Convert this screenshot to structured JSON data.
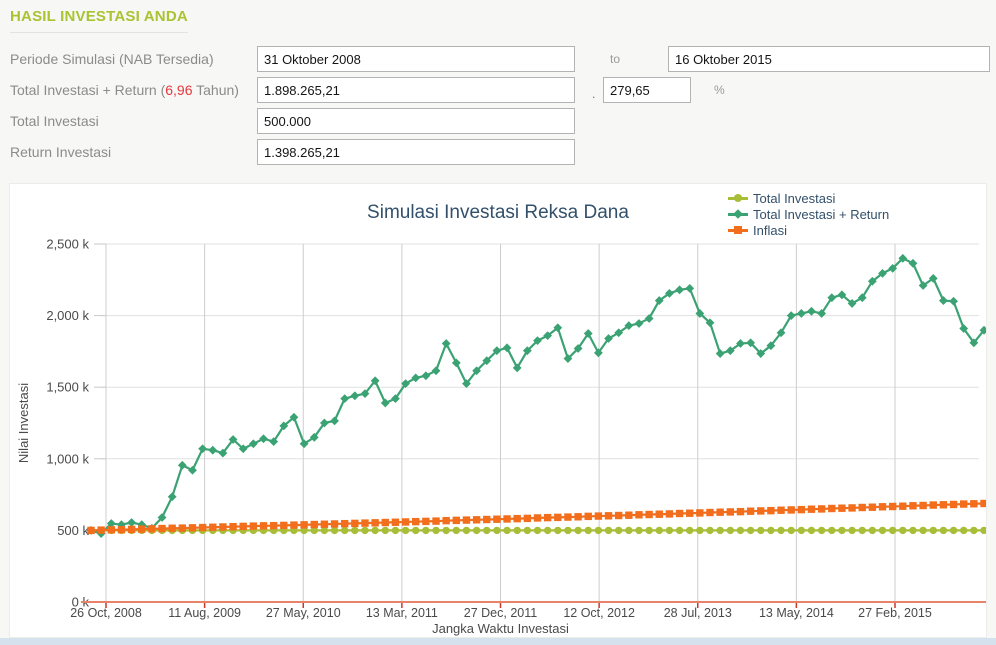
{
  "header": {
    "title": "HASIL INVESTASI ANDA"
  },
  "form": {
    "periode": {
      "label": "Periode Simulasi (NAB Tersedia)",
      "from": "31 Oktober 2008",
      "to_label": "to",
      "to": "16 Oktober 2015"
    },
    "total_return": {
      "label_prefix": "Total Investasi + Return (",
      "years": "6,96",
      "label_suffix": " Tahun)",
      "amount": "1.898.265,21",
      "separator": ".",
      "percent": "279,65",
      "percent_sign": "%"
    },
    "total_investasi": {
      "label": "Total Investasi",
      "value": "500.000"
    },
    "return_investasi": {
      "label": "Return Investasi",
      "value": "1.398.265,21"
    }
  },
  "chart_data": {
    "type": "line",
    "title": "Simulasi Investasi Reksa Dana",
    "xlabel": "Jangka Waktu Investasi",
    "ylabel": "Nilai Investasi",
    "ylim": [
      0,
      2500
    ],
    "grid": true,
    "legend_position": "top-right",
    "y_ticks": [
      "0 k",
      "500 k",
      "1,000 k",
      "1,500 k",
      "2,000 k",
      "2,500 k"
    ],
    "y_tick_values": [
      0,
      500,
      1000,
      1500,
      2000,
      2500
    ],
    "x_ticks": [
      "26 Oct, 2008",
      "11 Aug, 2009",
      "27 May, 2010",
      "13 Mar, 2011",
      "27 Dec, 2011",
      "12 Oct, 2012",
      "28 Jul, 2013",
      "13 May, 2014",
      "27 Feb, 2015"
    ],
    "colors": {
      "axis_line": "#e8836a",
      "axis_tick": "#c3392b",
      "grid_h": "#e0e0e0",
      "grid_v": "#cdcdcd",
      "tick_text": "#4a4a4a"
    },
    "series": [
      {
        "name": "Total Investasi",
        "color": "#a8be38",
        "marker": "circle",
        "values": [
          500,
          500,
          500,
          500,
          500,
          500,
          500,
          500,
          500,
          500,
          500,
          500,
          500,
          500,
          500,
          500,
          500,
          500,
          500,
          500,
          500,
          500,
          500,
          500,
          500,
          500,
          500,
          500,
          500,
          500,
          500,
          500,
          500,
          500,
          500,
          500,
          500,
          500,
          500,
          500,
          500,
          500,
          500,
          500,
          500,
          500,
          500,
          500,
          500,
          500,
          500,
          500,
          500,
          500,
          500,
          500,
          500,
          500,
          500,
          500,
          500,
          500,
          500,
          500,
          500,
          500,
          500,
          500,
          500,
          500,
          500,
          500,
          500,
          500,
          500,
          500,
          500,
          500,
          500,
          500,
          500,
          500,
          500,
          500,
          500,
          500,
          500,
          500,
          500
        ]
      },
      {
        "name": "Total Investasi + Return",
        "color": "#3ba273",
        "marker": "diamond",
        "values": [
          500,
          478,
          548,
          540,
          555,
          540,
          515,
          590,
          735,
          955,
          920,
          1070,
          1060,
          1040,
          1135,
          1070,
          1105,
          1140,
          1120,
          1230,
          1290,
          1105,
          1150,
          1250,
          1265,
          1420,
          1440,
          1455,
          1545,
          1390,
          1420,
          1525,
          1565,
          1580,
          1615,
          1805,
          1670,
          1525,
          1615,
          1685,
          1755,
          1775,
          1635,
          1755,
          1825,
          1860,
          1915,
          1700,
          1770,
          1875,
          1740,
          1840,
          1880,
          1930,
          1945,
          1980,
          2105,
          2155,
          2180,
          2190,
          2015,
          1950,
          1735,
          1755,
          1805,
          1810,
          1735,
          1790,
          1880,
          2000,
          2015,
          2030,
          2015,
          2125,
          2145,
          2085,
          2125,
          2240,
          2295,
          2330,
          2400,
          2365,
          2210,
          2260,
          2105,
          2100,
          1910,
          1810,
          1898
        ]
      },
      {
        "name": "Inflasi",
        "color": "#f26e1d",
        "marker": "square",
        "values": [
          500,
          502,
          504,
          505,
          507,
          509,
          511,
          513,
          515,
          516,
          518,
          520,
          522,
          524,
          526,
          528,
          530,
          532,
          533,
          535,
          537,
          539,
          541,
          543,
          545,
          547,
          549,
          551,
          553,
          555,
          557,
          559,
          561,
          563,
          565,
          568,
          570,
          572,
          574,
          576,
          578,
          580,
          582,
          584,
          587,
          589,
          591,
          593,
          595,
          598,
          600,
          602,
          604,
          606,
          609,
          611,
          613,
          615,
          618,
          620,
          622,
          625,
          627,
          629,
          631,
          634,
          636,
          638,
          641,
          643,
          645,
          648,
          650,
          653,
          655,
          657,
          660,
          662,
          665,
          667,
          669,
          672,
          674,
          677,
          679,
          681,
          684,
          686,
          688
        ]
      }
    ]
  }
}
